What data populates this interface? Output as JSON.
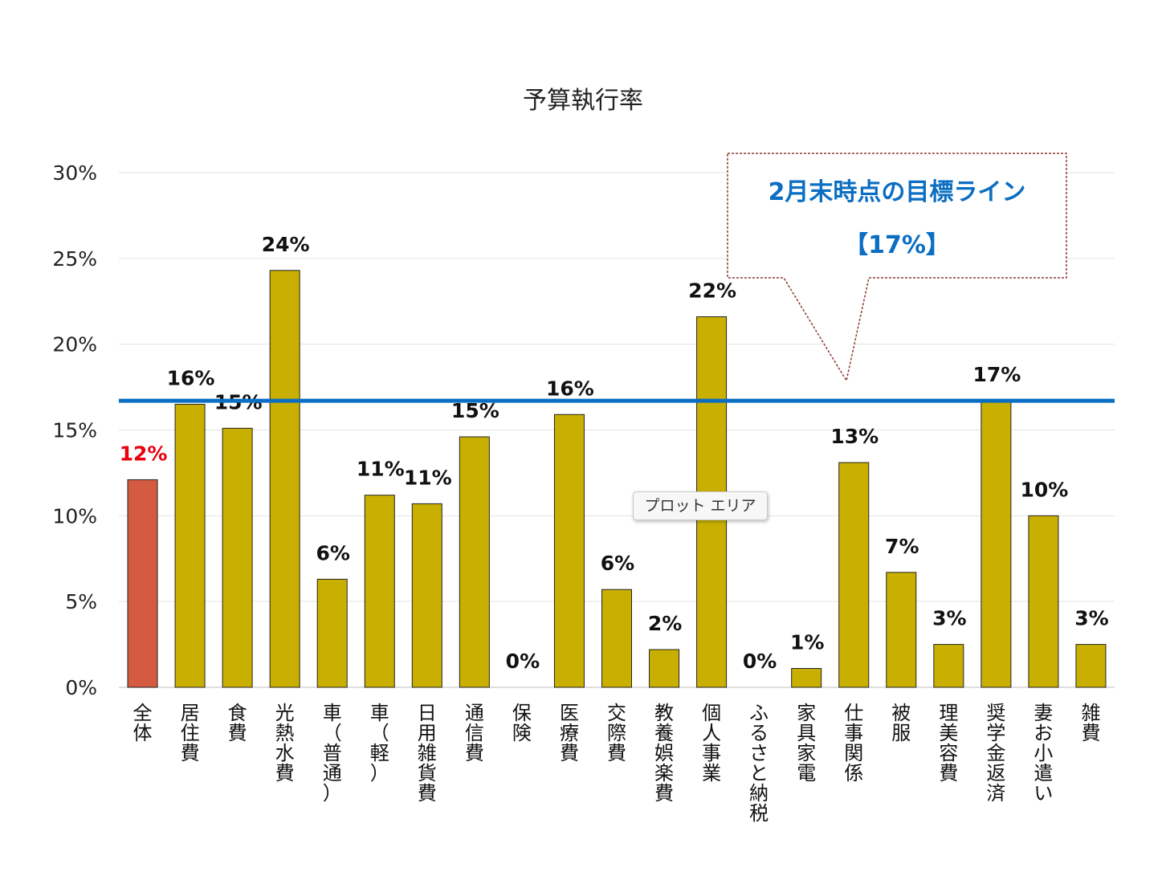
{
  "chart_data": {
    "type": "bar",
    "title": "予算執行率",
    "categories": [
      "全体",
      "居住費",
      "食費",
      "光熱水費",
      "車（普通）",
      "車（軽）",
      "日用雑貨費",
      "通信費",
      "保険",
      "医療費",
      "交際費",
      "教養娯楽費",
      "個人事業",
      "ふるさと納税",
      "家具家電",
      "仕事関係",
      "被服",
      "理美容費",
      "奨学金返済",
      "妻お小遣い",
      "雑費"
    ],
    "values": [
      12.1,
      16.5,
      15.1,
      24.3,
      6.3,
      11.2,
      10.7,
      14.6,
      0,
      15.9,
      5.7,
      2.2,
      21.6,
      0,
      1.1,
      13.1,
      6.7,
      2.5,
      16.7,
      10.0,
      2.5
    ],
    "data_labels": [
      "12%",
      "16%",
      "15%",
      "24%",
      "6%",
      "11%",
      "11%",
      "15%",
      "0%",
      "16%",
      "6%",
      "2%",
      "22%",
      "0%",
      "1%",
      "13%",
      "7%",
      "3%",
      "17%",
      "10%",
      "3%"
    ],
    "ylim": [
      0,
      30
    ],
    "yticks": [
      0,
      5,
      10,
      15,
      20,
      25,
      30
    ],
    "ytick_labels": [
      "0%",
      "5%",
      "10%",
      "15%",
      "20%",
      "25%",
      "30%"
    ],
    "grid": true,
    "target_line": {
      "value": 16.7,
      "color": "#0b6ec2"
    },
    "colors": {
      "highlight": "#d45b42",
      "bar": "#c9b000",
      "highlight_label": "#e8000d",
      "label": "#111111"
    },
    "highlight_index": 0,
    "callout": {
      "line1": "2月末時点の目標ライン",
      "line2": "【17%】",
      "border_color": "#8b3a2e"
    }
  },
  "tooltip": {
    "text": "プロット エリア"
  }
}
